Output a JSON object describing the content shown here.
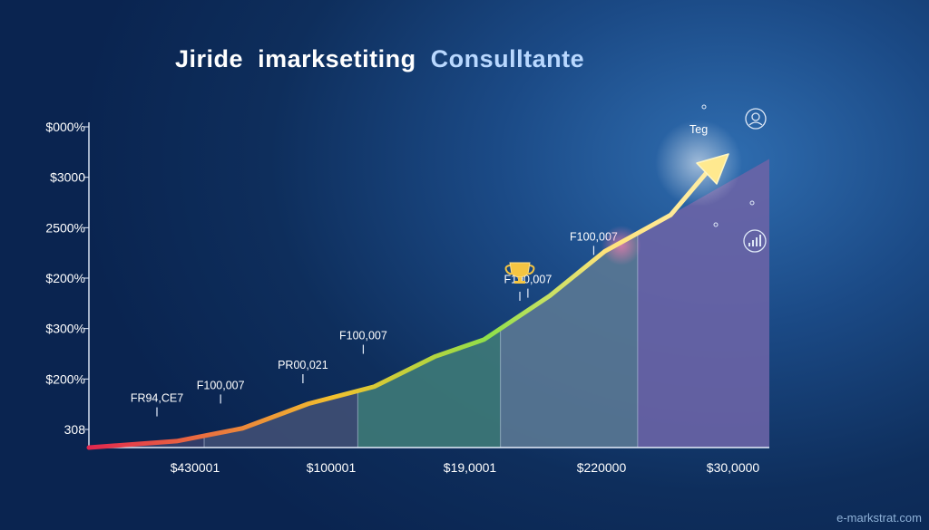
{
  "title_part1": "Jiride",
  "title_part2": "imarksetiting",
  "title_part3": "Consulltante",
  "watermark": "e-markstrat.com",
  "chart_data": {
    "type": "area",
    "title": "Jiride imarksetiting Consulltante",
    "y_tick_labels": [
      "$000%",
      "$3000",
      "2500%",
      "$200%",
      "$300%",
      "$200%",
      "308"
    ],
    "x_tick_labels": [
      "$430001",
      "$100001",
      "$19,0001",
      "$220000",
      "$30,0000"
    ],
    "ylim": [
      0,
      6
    ],
    "x": [
      0,
      0.8,
      1.4,
      2,
      2.6,
      3.15,
      3.6,
      4.2,
      4.7,
      5.3,
      6.2
    ],
    "y": [
      0,
      0.12,
      0.36,
      0.82,
      1.14,
      1.7,
      2.02,
      2.84,
      3.67,
      4.35,
      5.4
    ],
    "shaded_regions": [
      {
        "from": 0,
        "to": 1.05,
        "color": "#36406b"
      },
      {
        "from": 1.05,
        "to": 2.45,
        "color": "#3f4f74"
      },
      {
        "from": 2.45,
        "to": 3.75,
        "color": "#3e7a78"
      },
      {
        "from": 3.75,
        "to": 5.0,
        "color": "#5a7893"
      },
      {
        "from": 5.0,
        "to": 6.2,
        "color": "#6a64a6"
      }
    ],
    "annotations": [
      {
        "label": "FR94,CE7",
        "x": 0.62,
        "y": 0.38
      },
      {
        "label": "F100,007",
        "x": 1.2,
        "y": 0.62
      },
      {
        "label": "PR00,021",
        "x": 1.95,
        "y": 1.0
      },
      {
        "label": "F100,007",
        "x": 2.5,
        "y": 1.55
      },
      {
        "label": "F190,007",
        "x": 4.0,
        "y": 2.6
      },
      {
        "label": "F100,007",
        "x": 4.6,
        "y": 3.4
      }
    ],
    "end_label": "Teg",
    "colors": {
      "line_start": "#e2274e",
      "line_mid": "#f2c12e",
      "line_green": "#8fe04a",
      "line_end": "#ffe27a"
    },
    "icons": [
      "trophy-icon",
      "person-circle-icon",
      "bar-chart-circle-icon"
    ]
  }
}
